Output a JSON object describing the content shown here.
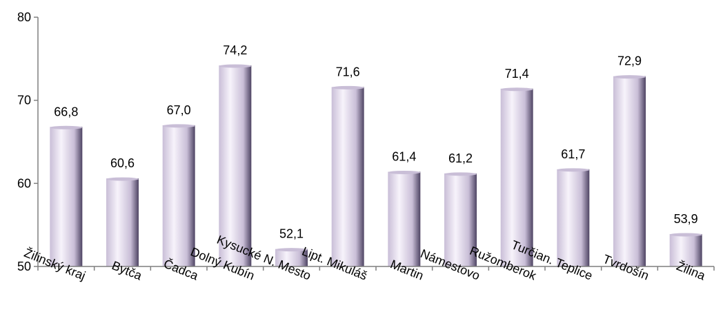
{
  "chart_data": {
    "type": "bar",
    "categories": [
      "Žilinský kraj",
      "Bytča",
      "Čadca",
      "Dolný Kubín",
      "Kysucké N. Mesto",
      "Lipt. Mikuláš",
      "Martin",
      "Námestovo",
      "Ružomberok",
      "Turčian. Teplice",
      "Tvrdošín",
      "Žilina"
    ],
    "values": [
      66.8,
      60.6,
      67.0,
      74.2,
      52.1,
      71.6,
      61.4,
      61.2,
      71.4,
      61.7,
      72.9,
      53.9
    ],
    "value_labels": [
      "66,8",
      "60,6",
      "67,0",
      "74,2",
      "52,1",
      "71,6",
      "61,4",
      "61,2",
      "71,4",
      "61,7",
      "72,9",
      "53,9"
    ],
    "title": "",
    "xlabel": "",
    "ylabel": "",
    "ylim": [
      50,
      80
    ],
    "yticks": [
      50,
      60,
      70,
      80
    ],
    "ytick_labels": [
      "50",
      "60",
      "70",
      "80"
    ],
    "grid": false,
    "legend": "none",
    "colors": {
      "bar_light": "#f7f3fb",
      "bar_mid": "#c9bed7",
      "bar_dark": "#4e4463",
      "axis": "#7f7f7f"
    }
  }
}
